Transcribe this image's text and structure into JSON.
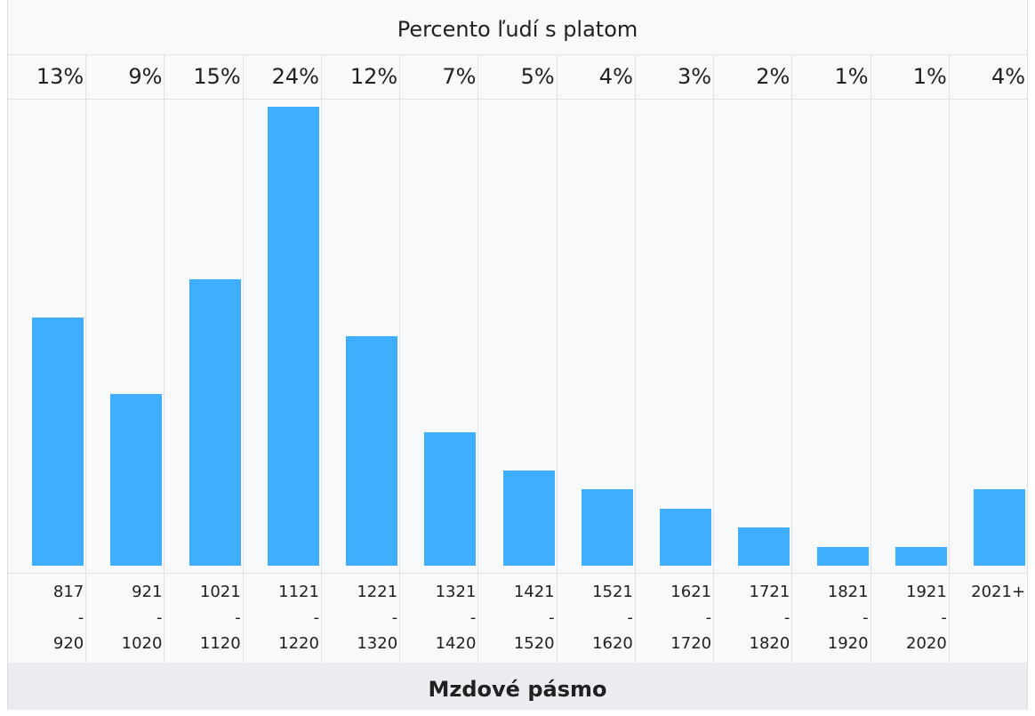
{
  "chart_data": {
    "type": "bar",
    "title": "Percento ľudí s platom",
    "x_label": "Mzdové pásmo",
    "categories": [
      "817\n-\n920",
      "921\n-\n1020",
      "1021\n-\n1120",
      "1121\n-\n1220",
      "1221\n-\n1320",
      "1321\n-\n1420",
      "1421\n-\n1520",
      "1521\n-\n1620",
      "1621\n-\n1720",
      "1721\n-\n1820",
      "1821\n-\n1920",
      "1921\n-\n2020",
      "2021+"
    ],
    "values": [
      13,
      9,
      15,
      24,
      12,
      7,
      5,
      4,
      3,
      2,
      1,
      1,
      4
    ],
    "value_labels": [
      "13%",
      "9%",
      "15%",
      "24%",
      "12%",
      "7%",
      "5%",
      "4%",
      "3%",
      "2%",
      "1%",
      "1%",
      "4%"
    ],
    "color": "#40aefe"
  }
}
